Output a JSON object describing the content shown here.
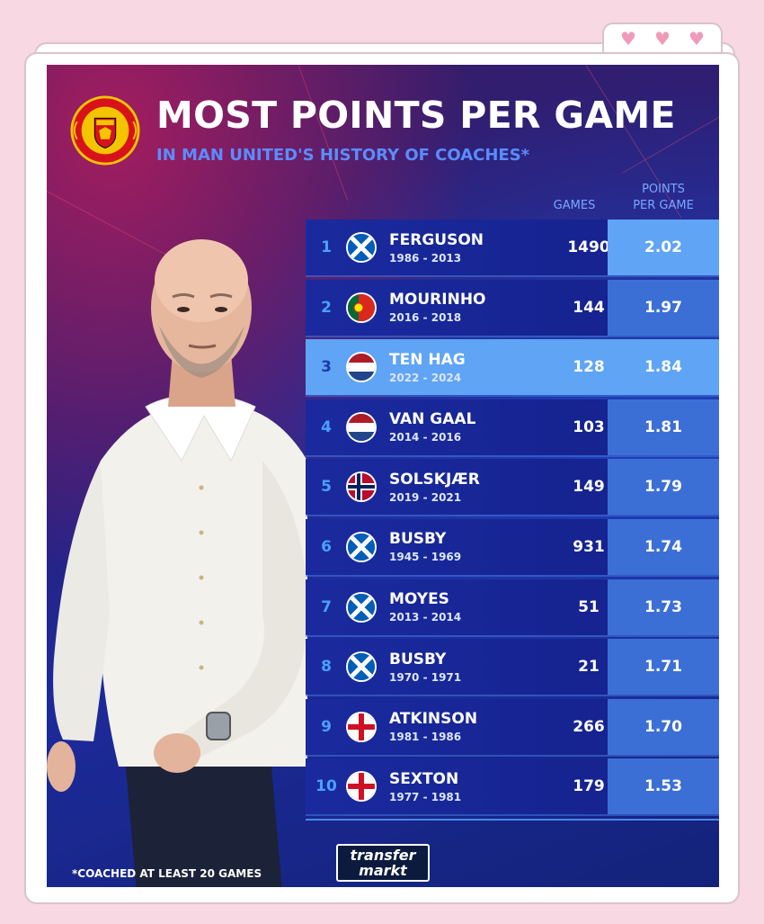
{
  "decor": {
    "hearts": [
      "♥",
      "♥",
      "♥"
    ]
  },
  "poster": {
    "title": "MOST POINTS PER GAME",
    "subtitle": "IN MAN UNITED'S HISTORY OF COACHES*",
    "col_games": "GAMES",
    "col_ppg_line1": "POINTS",
    "col_ppg_line2": "PER GAME",
    "footnote": "*COACHED AT LEAST 20 GAMES",
    "logo_line1": "transfer",
    "logo_line2": "markt",
    "crest_text": "MANCHESTER UNITED"
  },
  "rows": [
    {
      "rank": "1",
      "flag": "scotland",
      "name": "FERGUSON",
      "years": "1986 - 2013",
      "games": "1490",
      "ppg": "2.02",
      "highlight": false
    },
    {
      "rank": "2",
      "flag": "portugal",
      "name": "MOURINHO",
      "years": "2016 - 2018",
      "games": "144",
      "ppg": "1.97",
      "highlight": false
    },
    {
      "rank": "3",
      "flag": "netherlands",
      "name": "TEN HAG",
      "years": "2022 - 2024",
      "games": "128",
      "ppg": "1.84",
      "highlight": true
    },
    {
      "rank": "4",
      "flag": "netherlands",
      "name": "VAN GAAL",
      "years": "2014 - 2016",
      "games": "103",
      "ppg": "1.81",
      "highlight": false
    },
    {
      "rank": "5",
      "flag": "norway",
      "name": "SOLSKJÆR",
      "years": "2019 - 2021",
      "games": "149",
      "ppg": "1.79",
      "highlight": false
    },
    {
      "rank": "6",
      "flag": "scotland",
      "name": "BUSBY",
      "years": "1945 - 1969",
      "games": "931",
      "ppg": "1.74",
      "highlight": false
    },
    {
      "rank": "7",
      "flag": "scotland",
      "name": "MOYES",
      "years": "2013 - 2014",
      "games": "51",
      "ppg": "1.73",
      "highlight": false
    },
    {
      "rank": "8",
      "flag": "scotland",
      "name": "BUSBY",
      "years": "1970 - 1971",
      "games": "21",
      "ppg": "1.71",
      "highlight": false
    },
    {
      "rank": "9",
      "flag": "england",
      "name": "ATKINSON",
      "years": "1981 - 1986",
      "games": "266",
      "ppg": "1.70",
      "highlight": false
    },
    {
      "rank": "10",
      "flag": "england",
      "name": "SEXTON",
      "years": "1977 - 1981",
      "games": "179",
      "ppg": "1.53",
      "highlight": false
    }
  ],
  "colors": {
    "page_bg": "#f8d8e3",
    "accent_blue": "#5fa4f5",
    "row_blue": "#1a2a9e",
    "ppg_blue": "#3c6fd6",
    "heart_pink": "#ef9bb8"
  }
}
